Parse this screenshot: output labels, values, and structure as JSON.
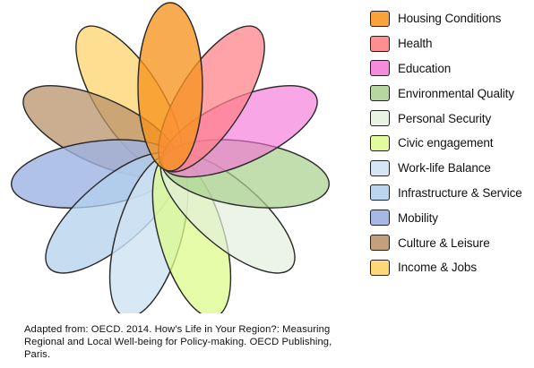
{
  "petals": [
    {
      "name": "Housing Conditions",
      "color": "#f7931e",
      "opacity": 0.78
    },
    {
      "name": "Health",
      "color": "#ff7f86",
      "opacity": 0.72
    },
    {
      "name": "Education",
      "color": "#f56fd6",
      "opacity": 0.62
    },
    {
      "name": "Environmental Quality",
      "color": "#a8d08d",
      "opacity": 0.7
    },
    {
      "name": "Personal Security",
      "color": "#e2f0dc",
      "opacity": 0.7
    },
    {
      "name": "Civic engagement",
      "color": "#dcfb8c",
      "opacity": 0.75
    },
    {
      "name": "Work-life Balance",
      "color": "#cfe2f3",
      "opacity": 0.8
    },
    {
      "name": "Infrastructure & Service",
      "color": "#b3d0ec",
      "opacity": 0.75
    },
    {
      "name": "Mobility",
      "color": "#9eb3e3",
      "opacity": 0.8
    },
    {
      "name": "Culture & Leisure",
      "color": "#b9926a",
      "opacity": 0.75
    },
    {
      "name": "Income & Jobs",
      "color": "#fdd36b",
      "opacity": 0.75
    }
  ],
  "legend": [
    {
      "label": "Housing Conditions",
      "color": "#f7a23a"
    },
    {
      "label": "Health",
      "color": "#ff8f8f"
    },
    {
      "label": "Education",
      "color": "#f58bdc"
    },
    {
      "label": "Environmental Quality",
      "color": "#b5d7a0"
    },
    {
      "label": "Personal Security",
      "color": "#e8f3e3"
    },
    {
      "label": "Civic engagement",
      "color": "#e3fb9c"
    },
    {
      "label": "Work-life Balance",
      "color": "#d4e5f5"
    },
    {
      "label": "Infrastructure & Service",
      "color": "#bcd5ef"
    },
    {
      "label": "Mobility",
      "color": "#a6b8e6"
    },
    {
      "label": "Culture & Leisure",
      "color": "#c3a079"
    },
    {
      "label": "Income & Jobs",
      "color": "#fdd77a"
    }
  ],
  "caption": {
    "line1": "Adapted from: OECD. 2014. How’s Life in Your Region?: Measuring",
    "line2": "Regional and Local Well-being for Policy-making. OECD Publishing,",
    "line3": "Paris."
  }
}
